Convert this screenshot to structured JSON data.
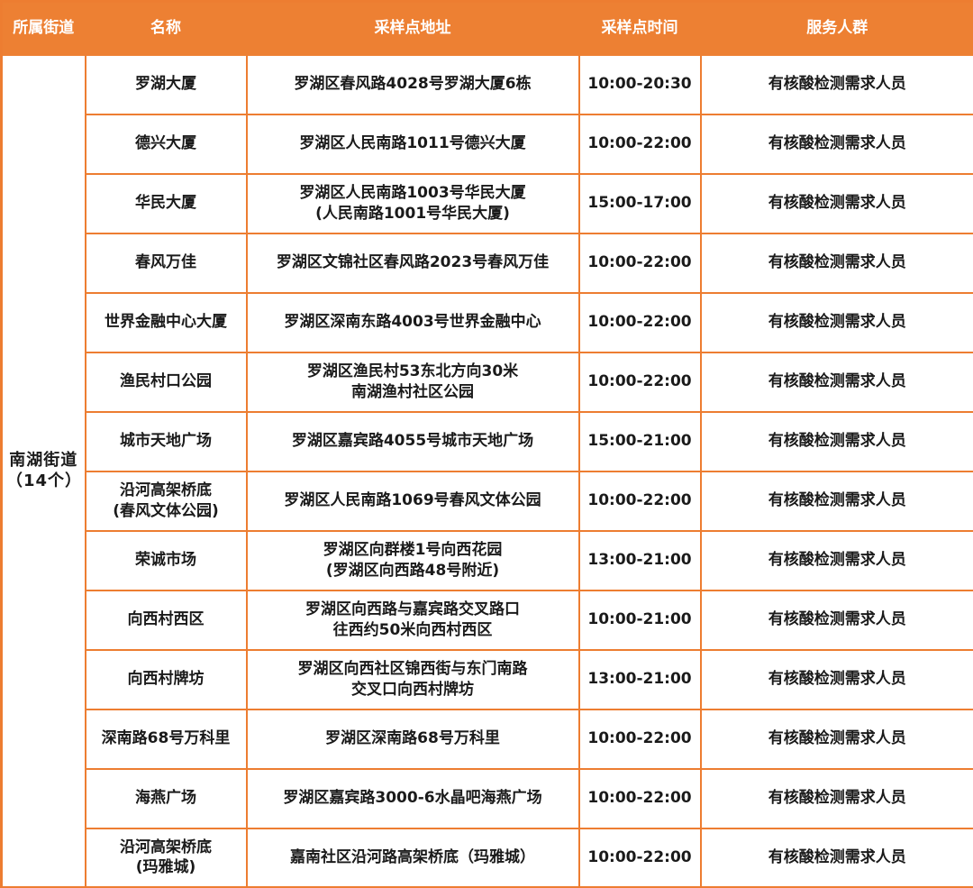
{
  "colors": {
    "header_bg": "#ED8033",
    "border": "#ED7D31",
    "header_text": "#FFFFFF",
    "cell_text": "#1A1A1A",
    "cell_bg": "#FFFFFF"
  },
  "table": {
    "headers": [
      "所属街道",
      "名称",
      "采样点地址",
      "采样点时间",
      "服务人群"
    ],
    "street_group": {
      "lines": [
        "南湖街道",
        "（14个）"
      ],
      "row_count": 14
    },
    "rows": [
      {
        "name": [
          "罗湖大厦"
        ],
        "address": [
          "罗湖区春风路4028号罗湖大厦6栋"
        ],
        "time": "10:00-20:30",
        "service": "有核酸检测需求人员"
      },
      {
        "name": [
          "德兴大厦"
        ],
        "address": [
          "罗湖区人民南路1011号德兴大厦"
        ],
        "time": "10:00-22:00",
        "service": "有核酸检测需求人员"
      },
      {
        "name": [
          "华民大厦"
        ],
        "address": [
          "罗湖区人民南路1003号华民大厦",
          "(人民南路1001号华民大厦)"
        ],
        "time": "15:00-17:00",
        "service": "有核酸检测需求人员"
      },
      {
        "name": [
          "春风万佳"
        ],
        "address": [
          "罗湖区文锦社区春风路2023号春风万佳"
        ],
        "time": "10:00-22:00",
        "service": "有核酸检测需求人员"
      },
      {
        "name": [
          "世界金融中心大厦"
        ],
        "address": [
          "罗湖区深南东路4003号世界金融中心"
        ],
        "time": "10:00-22:00",
        "service": "有核酸检测需求人员"
      },
      {
        "name": [
          "渔民村口公园"
        ],
        "address": [
          "罗湖区渔民村53东北方向30米",
          "南湖渔村社区公园"
        ],
        "time": "10:00-22:00",
        "service": "有核酸检测需求人员"
      },
      {
        "name": [
          "城市天地广场"
        ],
        "address": [
          "罗湖区嘉宾路4055号城市天地广场"
        ],
        "time": "15:00-21:00",
        "service": "有核酸检测需求人员"
      },
      {
        "name": [
          "沿河高架桥底",
          "(春风文体公园)"
        ],
        "address": [
          "罗湖区人民南路1069号春风文体公园"
        ],
        "time": "10:00-22:00",
        "service": "有核酸检测需求人员"
      },
      {
        "name": [
          "荣诚市场"
        ],
        "address": [
          "罗湖区向群楼1号向西花园",
          "(罗湖区向西路48号附近)"
        ],
        "time": "13:00-21:00",
        "service": "有核酸检测需求人员"
      },
      {
        "name": [
          "向西村西区"
        ],
        "address": [
          "罗湖区向西路与嘉宾路交叉路口",
          "往西约50米向西村西区"
        ],
        "time": "10:00-21:00",
        "service": "有核酸检测需求人员"
      },
      {
        "name": [
          "向西村牌坊"
        ],
        "address": [
          "罗湖区向西社区锦西街与东门南路",
          "交叉口向西村牌坊"
        ],
        "time": "13:00-21:00",
        "service": "有核酸检测需求人员"
      },
      {
        "name": [
          "深南路68号万科里"
        ],
        "address": [
          "罗湖区深南路68号万科里"
        ],
        "time": "10:00-22:00",
        "service": "有核酸检测需求人员"
      },
      {
        "name": [
          "海燕广场"
        ],
        "address": [
          "罗湖区嘉宾路3000-6水晶吧海燕广场"
        ],
        "time": "10:00-22:00",
        "service": "有核酸检测需求人员"
      },
      {
        "name": [
          "沿河高架桥底",
          "(玛雅城)"
        ],
        "address": [
          "嘉南社区沿河路高架桥底（玛雅城）"
        ],
        "time": "10:00-22:00",
        "service": "有核酸检测需求人员"
      }
    ]
  }
}
